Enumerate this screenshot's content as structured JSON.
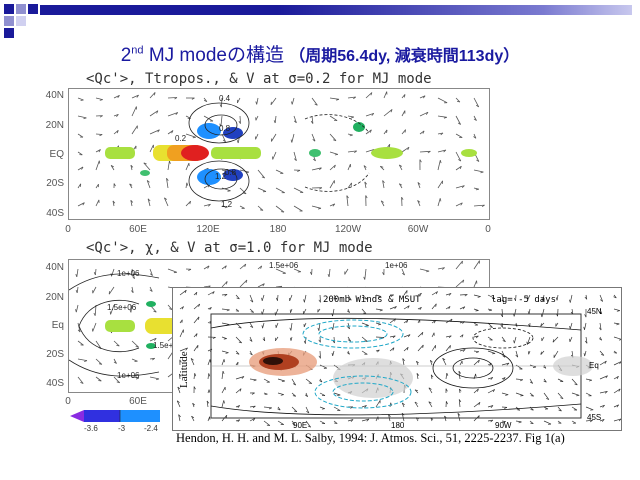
{
  "slide": {
    "title_main": "2",
    "title_sup": "nd",
    "title_rest": " MJ modeの構造",
    "title_paren": "（周期56.4dy, 減衰時間113dy）"
  },
  "upper_panel": {
    "title": "<Qc'>, Ttropos., & V at σ=0.2 for MJ mode",
    "lat_labels": [
      "40N",
      "20N",
      "EQ",
      "20S",
      "40S"
    ],
    "lon_labels": [
      "0",
      "60E",
      "120E",
      "180",
      "120W",
      "60W",
      "0"
    ],
    "contour_labels": [
      "0.4",
      "0.8",
      "0.2",
      "1.2",
      "0.8",
      "1.2"
    ]
  },
  "lower_panel": {
    "title": "<Qc'>, χ, & V at σ=1.0 for MJ mode",
    "lat_labels": [
      "40N",
      "20N",
      "Eq",
      "20S",
      "40S"
    ],
    "lon_labels": [
      "0",
      "60E"
    ],
    "contour_labels": [
      "1e+06",
      "1.5e+06",
      "1e+06",
      "1.5e+06",
      "1e+06",
      "1.5e+06"
    ]
  },
  "colorbar": {
    "labels": [
      "-3.6",
      "-3",
      "-2.4"
    ],
    "colors": [
      "#8a2be2",
      "#3030e0",
      "#1e90ff"
    ]
  },
  "inset": {
    "title": "200mb Winds & MSUT",
    "lag": "lag= -5 days",
    "ylabel": "Latitude",
    "right_labels": [
      "45N",
      "Eq",
      "45S"
    ],
    "bottom_labels": [
      "90E",
      "180",
      "90W"
    ]
  },
  "citation": "Hendon, H. H. and M. L. Salby, 1994: J. Atmos. Sci., 51, 2225-2237. Fig 1(a)"
}
